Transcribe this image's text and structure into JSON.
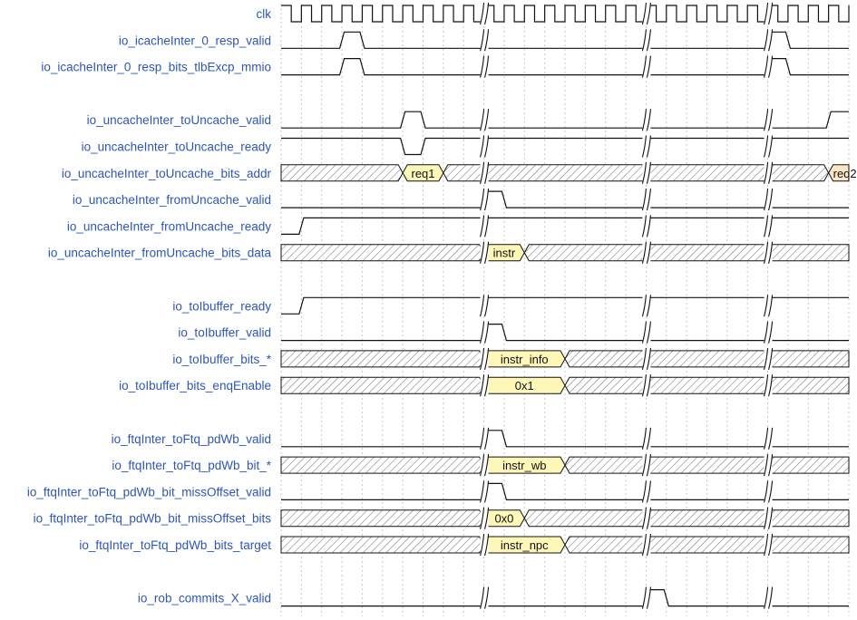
{
  "diagram": {
    "colors": {
      "label": "#2e55b4",
      "wave": "#111111",
      "value_fill": "#fff7b8",
      "value_fill_alt": "#fde6c6",
      "grid": "#c8c8c8"
    },
    "signals": [
      {
        "name": "clk",
        "kind": "clock"
      },
      {
        "name": "io_icacheInter_0_resp_valid",
        "kind": "bit",
        "levels": "0001000000000000000000001000"
      },
      {
        "name": "io_icacheInter_0_resp_bits_tlbExcp_mmio",
        "kind": "bit",
        "levels": "0001000000000000000000001000"
      },
      {
        "kind": "gap"
      },
      {
        "name": "io_uncacheInter_toUncache_valid",
        "kind": "bit",
        "levels": "0000001000000000000000000001"
      },
      {
        "name": "io_uncacheInter_toUncache_ready",
        "kind": "bit",
        "levels": "1111110111111111111111111111"
      },
      {
        "name": "io_uncacheInter_toUncache_bits_addr",
        "kind": "bus",
        "segments": [
          {
            "from": 0,
            "to": 6,
            "value": null
          },
          {
            "from": 6,
            "to": 8,
            "value": "req1"
          },
          {
            "from": 8,
            "to": 27,
            "value": null
          },
          {
            "from": 27,
            "to": 28,
            "value": "req2",
            "alt": true
          }
        ]
      },
      {
        "name": "io_uncacheInter_fromUncache_valid",
        "kind": "bit",
        "levels": "0000000000100000000000000000"
      },
      {
        "name": "io_uncacheInter_fromUncache_ready",
        "kind": "bit",
        "levels": "0111111111111111111111111111"
      },
      {
        "name": "io_uncacheInter_fromUncache_bits_data",
        "kind": "bus",
        "segments": [
          {
            "from": 0,
            "to": 10,
            "value": null
          },
          {
            "from": 10,
            "to": 12,
            "value": "instr"
          },
          {
            "from": 12,
            "to": 28,
            "value": null
          }
        ]
      },
      {
        "kind": "gap"
      },
      {
        "name": "io_toIbuffer_ready",
        "kind": "bit",
        "levels": "0111111111111111111111111111"
      },
      {
        "name": "io_toIbuffer_valid",
        "kind": "bit",
        "levels": "0000000000100000000000000000"
      },
      {
        "name": "io_toIbuffer_bits_*",
        "kind": "bus",
        "segments": [
          {
            "from": 0,
            "to": 10,
            "value": null
          },
          {
            "from": 10,
            "to": 14,
            "value": "instr_info"
          },
          {
            "from": 14,
            "to": 28,
            "value": null
          }
        ]
      },
      {
        "name": "io_toIbuffer_bits_enqEnable",
        "kind": "bus",
        "segments": [
          {
            "from": 0,
            "to": 10,
            "value": null
          },
          {
            "from": 10,
            "to": 14,
            "value": "0x1"
          },
          {
            "from": 14,
            "to": 28,
            "value": null
          }
        ]
      },
      {
        "kind": "gap"
      },
      {
        "name": "io_ftqInter_toFtq_pdWb_valid",
        "kind": "bit",
        "levels": "0000000000100000000000000000"
      },
      {
        "name": "io_ftqInter_toFtq_pdWb_bit_*",
        "kind": "bus",
        "segments": [
          {
            "from": 0,
            "to": 10,
            "value": null
          },
          {
            "from": 10,
            "to": 14,
            "value": "instr_wb"
          },
          {
            "from": 14,
            "to": 28,
            "value": null
          }
        ]
      },
      {
        "name": "io_ftqInter_toFtq_pdWb_bit_missOffset_valid",
        "kind": "bit",
        "levels": "0000000000100000000000000000"
      },
      {
        "name": "io_ftqInter_toFtq_pdWb_bit_missOffset_bits",
        "kind": "bus",
        "segments": [
          {
            "from": 0,
            "to": 10,
            "value": null
          },
          {
            "from": 10,
            "to": 12,
            "value": "0x0"
          },
          {
            "from": 12,
            "to": 28,
            "value": null
          }
        ]
      },
      {
        "name": "io_ftqInter_toFtq_pdWb_bits_target",
        "kind": "bus",
        "segments": [
          {
            "from": 0,
            "to": 10,
            "value": null
          },
          {
            "from": 10,
            "to": 14,
            "value": "instr_npc"
          },
          {
            "from": 14,
            "to": 28,
            "value": null
          }
        ]
      },
      {
        "kind": "gap"
      },
      {
        "name": "io_rob_commits_X_valid",
        "kind": "bit",
        "levels": "0000000000000000001000000000"
      }
    ],
    "breaks": [
      10,
      18,
      24
    ]
  }
}
